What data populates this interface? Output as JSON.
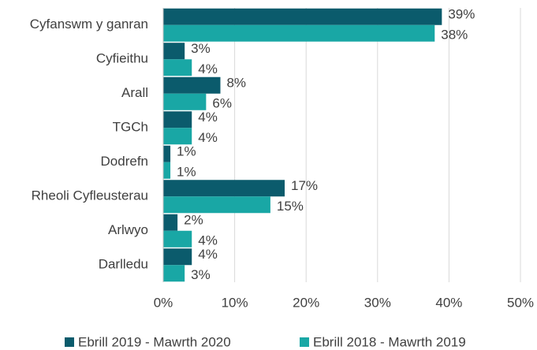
{
  "chart_data": {
    "type": "hbar",
    "categories": [
      "Cyfanswm y ganran",
      "Cyfieithu",
      "Arall",
      "TGCh",
      "Dodrefn",
      "Rheoli Cyfleusterau",
      "Arlwyo",
      "Darlledu"
    ],
    "series": [
      {
        "name": "Ebrill 2019 - Mawrth 2020",
        "color": "#0b5b6c",
        "values": [
          39,
          3,
          8,
          4,
          1,
          17,
          2,
          4
        ],
        "value_labels": [
          "39%",
          "3%",
          "8%",
          "4%",
          "1%",
          "17%",
          "2%",
          "4%"
        ]
      },
      {
        "name": "Ebrill 2018 - Mawrth 2019",
        "color": "#19a7a5",
        "values": [
          38,
          4,
          6,
          4,
          1,
          15,
          4,
          3
        ],
        "value_labels": [
          "38%",
          "4%",
          "6%",
          "4%",
          "1%",
          "15%",
          "4%",
          "3%"
        ]
      }
    ],
    "xlim": [
      0,
      50
    ],
    "xticks": [
      {
        "value": 0,
        "label": "0%"
      },
      {
        "value": 10,
        "label": "10%"
      },
      {
        "value": 20,
        "label": "20%"
      },
      {
        "value": 30,
        "label": "30%"
      },
      {
        "value": 40,
        "label": "40%"
      },
      {
        "value": 50,
        "label": "50%"
      }
    ],
    "grid": true,
    "legend": "bottom"
  }
}
